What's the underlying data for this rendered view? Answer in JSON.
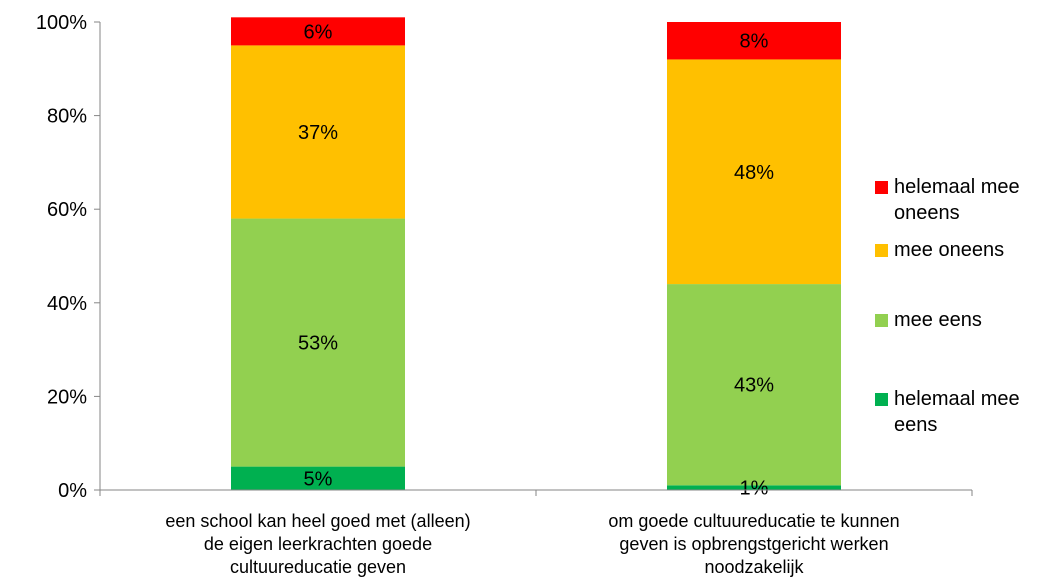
{
  "chart_data": {
    "type": "bar",
    "stacked": true,
    "percent": true,
    "categories": [
      [
        "een school kan heel goed met (alleen)",
        "de eigen leerkrachten goede",
        "cultuureducatie geven"
      ],
      [
        "om goede cultuureducatie te kunnen",
        "geven is opbrengstgericht werken",
        "noodzakelijk"
      ]
    ],
    "series": [
      {
        "name": "helemaal mee eens",
        "legend_lines": [
          "helemaal mee",
          "eens"
        ],
        "color": "#00b050",
        "values": [
          5,
          1
        ],
        "labels": [
          "5%",
          "1%"
        ]
      },
      {
        "name": "mee eens",
        "legend_lines": [
          "mee eens"
        ],
        "color": "#92d050",
        "values": [
          53,
          43
        ],
        "labels": [
          "53%",
          "43%"
        ]
      },
      {
        "name": "mee oneens",
        "legend_lines": [
          "mee oneens"
        ],
        "color": "#ffc000",
        "values": [
          37,
          48
        ],
        "labels": [
          "37%",
          "48%"
        ]
      },
      {
        "name": "helemaal mee oneens",
        "legend_lines": [
          "helemaal mee",
          "oneens"
        ],
        "color": "#ff0000",
        "values": [
          6,
          8
        ],
        "labels": [
          "6%",
          "8%"
        ]
      }
    ],
    "ylim": [
      0,
      100
    ],
    "yticks": [
      "0%",
      "20%",
      "40%",
      "60%",
      "80%",
      "100%"
    ],
    "grid": false,
    "legend_position": "right"
  }
}
